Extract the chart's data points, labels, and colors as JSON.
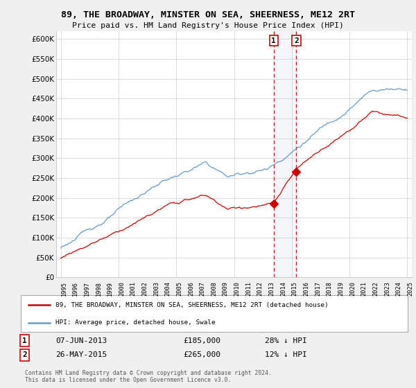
{
  "title": "89, THE BROADWAY, MINSTER ON SEA, SHEERNESS, ME12 2RT",
  "subtitle": "Price paid vs. HM Land Registry's House Price Index (HPI)",
  "legend_line1": "89, THE BROADWAY, MINSTER ON SEA, SHEERNESS, ME12 2RT (detached house)",
  "legend_line2": "HPI: Average price, detached house, Swale",
  "sale1_label": "1",
  "sale1_date": "07-JUN-2013",
  "sale1_price": "£185,000",
  "sale1_hpi": "28% ↓ HPI",
  "sale2_label": "2",
  "sale2_date": "26-MAY-2015",
  "sale2_price": "£265,000",
  "sale2_hpi": "12% ↓ HPI",
  "copyright": "Contains HM Land Registry data © Crown copyright and database right 2024.\nThis data is licensed under the Open Government Licence v3.0.",
  "red_color": "#cc0000",
  "blue_color": "#6699cc",
  "background_color": "#f0f0f0",
  "plot_bg_color": "#ffffff",
  "ylim": [
    0,
    620000
  ],
  "yticks": [
    0,
    50000,
    100000,
    150000,
    200000,
    250000,
    300000,
    350000,
    400000,
    450000,
    500000,
    550000,
    600000
  ],
  "year_start": 1995,
  "year_end": 2025,
  "sale1_year": 2013.44,
  "sale1_value": 185000,
  "sale2_year": 2015.4,
  "sale2_value": 265000
}
